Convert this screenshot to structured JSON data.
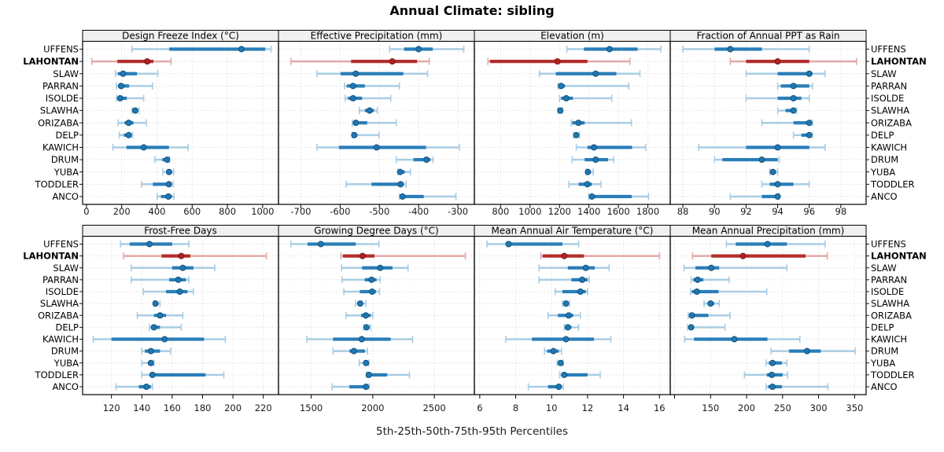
{
  "title": "Annual Climate: sibling",
  "caption": "5th-25th-50th-75th-95th Percentiles",
  "colors": {
    "normal": "#1f78b4",
    "normal_light": "#a9cde4",
    "normal_dark": "#14537d",
    "highlight": "#b22222",
    "highlight_light": "#e2a8a8",
    "highlight_dark": "#7c1616",
    "strip_bg": "#f0f0f0",
    "panel_border": "#000000",
    "grid": "#d2d2d2",
    "tick": "#000000",
    "tick_label": "#1a1a1a",
    "station_label": "#000000"
  },
  "chart_data": {
    "type": "dotplot-percentiles",
    "percentiles": [
      "5th",
      "25th",
      "50th",
      "75th",
      "95th"
    ],
    "stations": [
      "UFFENS",
      "LAHONTAN",
      "SLAW",
      "PARRAN",
      "ISOLDE",
      "SLAWHA",
      "ORIZABA",
      "DELP",
      "KAWICH",
      "DRUM",
      "YUBA",
      "TODDLER",
      "ANCO"
    ],
    "highlight_station": "LAHONTAN",
    "grid_style": "dotted",
    "panels": [
      {
        "title": "Design Freeze Index (°C)",
        "xlim": [
          -22,
          1090
        ],
        "ticks": [
          0,
          200,
          400,
          600,
          800,
          1000
        ],
        "values": [
          [
            258,
            470,
            880,
            1015,
            1048
          ],
          [
            30,
            175,
            345,
            380,
            480
          ],
          [
            164,
            178,
            208,
            287,
            405
          ],
          [
            170,
            180,
            197,
            242,
            375
          ],
          [
            170,
            180,
            191,
            229,
            325
          ],
          [
            258,
            268,
            277,
            287,
            298
          ],
          [
            179,
            216,
            240,
            267,
            340
          ],
          [
            186,
            212,
            240,
            256,
            262
          ],
          [
            150,
            227,
            325,
            468,
            577
          ],
          [
            388,
            430,
            458,
            466,
            471
          ],
          [
            433,
            452,
            469,
            482,
            495
          ],
          [
            313,
            377,
            468,
            483,
            492
          ],
          [
            402,
            423,
            465,
            485,
            496
          ]
        ]
      },
      {
        "title": "Effective Precipitation (mm)",
        "xlim": [
          -757,
          -258
        ],
        "ticks": [
          -700,
          -600,
          -500,
          -400,
          -300
        ],
        "values": [
          [
            -474,
            -437,
            -400,
            -364,
            -285
          ],
          [
            -725,
            -572,
            -467,
            -404,
            -373
          ],
          [
            -659,
            -599,
            -560,
            -439,
            -377
          ],
          [
            -589,
            -583,
            -567,
            -537,
            -449
          ],
          [
            -587,
            -580,
            -567,
            -544,
            -471
          ],
          [
            -551,
            -537,
            -525,
            -514,
            -505
          ],
          [
            -569,
            -566,
            -560,
            -531,
            -457
          ],
          [
            -569,
            -567,
            -564,
            -556,
            -501
          ],
          [
            -659,
            -603,
            -507,
            -381,
            -296
          ],
          [
            -457,
            -413,
            -380,
            -370,
            -363
          ],
          [
            -453,
            -450,
            -447,
            -435,
            -421
          ],
          [
            -585,
            -520,
            -446,
            -438,
            -432
          ],
          [
            -449,
            -445,
            -441,
            -387,
            -305
          ]
        ]
      },
      {
        "title": "Elevation (m)",
        "xlim": [
          622,
          1952
        ],
        "ticks": [
          800,
          1000,
          1200,
          1400,
          1600,
          1800
        ],
        "values": [
          [
            1250,
            1365,
            1540,
            1730,
            1888
          ],
          [
            714,
            728,
            1186,
            1390,
            1678
          ],
          [
            1064,
            1175,
            1446,
            1586,
            1746
          ],
          [
            1190,
            1196,
            1211,
            1237,
            1670
          ],
          [
            1200,
            1211,
            1246,
            1291,
            1555
          ],
          [
            1190,
            1198,
            1205,
            1212,
            1220
          ],
          [
            1280,
            1286,
            1329,
            1371,
            1688
          ],
          [
            1296,
            1305,
            1314,
            1324,
            1336
          ],
          [
            1314,
            1390,
            1434,
            1693,
            1786
          ],
          [
            1286,
            1371,
            1446,
            1530,
            1568
          ],
          [
            1380,
            1387,
            1393,
            1405,
            1429
          ],
          [
            1264,
            1330,
            1389,
            1420,
            1482
          ],
          [
            1398,
            1412,
            1420,
            1690,
            1805
          ]
        ]
      },
      {
        "title": "Fraction of Annual PPT as Rain",
        "xlim": [
          87.2,
          99.6
        ],
        "ticks": [
          88,
          90,
          92,
          94,
          96,
          98
        ],
        "values": [
          [
            88,
            90,
            91,
            93,
            96
          ],
          [
            91,
            92,
            94,
            96,
            99
          ],
          [
            92,
            94,
            96,
            96.2,
            97
          ],
          [
            94,
            94.2,
            95,
            96,
            96.2
          ],
          [
            92,
            94,
            95,
            95.5,
            96
          ],
          [
            94,
            94.5,
            95,
            95.1,
            95.2
          ],
          [
            93,
            95,
            96,
            96.1,
            96.2
          ],
          [
            95,
            95.5,
            96,
            96.1,
            96.2
          ],
          [
            89,
            92,
            94,
            96,
            97
          ],
          [
            90,
            90.5,
            93,
            94,
            94.1
          ],
          [
            93.5,
            93.6,
            93.7,
            93.9,
            94
          ],
          [
            93,
            93.5,
            94,
            95,
            96
          ],
          [
            91,
            93,
            94,
            94.05,
            94.1
          ]
        ]
      },
      {
        "title": "Frost-Free Days",
        "xlim": [
          101,
          230
        ],
        "ticks": [
          120,
          140,
          160,
          180,
          200,
          220
        ],
        "values": [
          [
            126,
            132,
            145,
            160,
            171
          ],
          [
            128,
            153,
            166,
            172,
            222
          ],
          [
            133,
            160,
            167,
            174,
            188
          ],
          [
            133,
            158,
            164,
            169,
            171
          ],
          [
            141,
            156,
            165,
            170,
            174
          ],
          [
            148,
            148.5,
            149,
            150,
            152
          ],
          [
            137,
            148,
            152,
            156,
            167
          ],
          [
            145,
            146,
            148,
            152,
            166
          ],
          [
            108,
            120,
            155,
            181,
            195
          ],
          [
            140,
            142,
            146,
            152,
            159
          ],
          [
            140,
            144,
            146,
            147,
            148
          ],
          [
            140,
            145,
            147,
            182,
            194
          ],
          [
            123,
            138,
            143,
            146,
            147
          ]
        ]
      },
      {
        "title": "Growing Degree Days (°C)",
        "xlim": [
          1234,
          2825
        ],
        "ticks": [
          1500,
          2000,
          2500
        ],
        "values": [
          [
            1335,
            1470,
            1578,
            1862,
            2050
          ],
          [
            1742,
            1757,
            1917,
            2014,
            2752
          ],
          [
            1746,
            1913,
            2060,
            2160,
            2286
          ],
          [
            1750,
            1935,
            1990,
            2030,
            2060
          ],
          [
            1765,
            1895,
            1995,
            2025,
            2055
          ],
          [
            1860,
            1885,
            1898,
            1915,
            1945
          ],
          [
            1783,
            1905,
            1943,
            1983,
            2000
          ],
          [
            1925,
            1938,
            1949,
            1962,
            1983
          ],
          [
            1465,
            1677,
            1910,
            2145,
            2323
          ],
          [
            1677,
            1810,
            1847,
            1936,
            1957
          ],
          [
            1889,
            1925,
            1945,
            1955,
            1968
          ],
          [
            1947,
            1955,
            1968,
            2117,
            2298
          ],
          [
            1670,
            1810,
            1945,
            1960,
            1972
          ]
        ]
      },
      {
        "title": "Mean Annual Air Temperature (°C)",
        "xlim": [
          5.7,
          16.6
        ],
        "ticks": [
          6,
          8,
          10,
          12,
          14,
          16
        ],
        "values": [
          [
            6.4,
            7.5,
            7.6,
            10.6,
            11.5
          ],
          [
            9.4,
            9.5,
            10.7,
            11.8,
            16
          ],
          [
            9.3,
            10.9,
            11.9,
            12.4,
            13.2
          ],
          [
            9.3,
            11.1,
            11.7,
            12,
            12.1
          ],
          [
            10.2,
            10.6,
            11.6,
            11.9,
            12
          ],
          [
            10.6,
            10.75,
            10.8,
            10.9,
            11
          ],
          [
            9.8,
            10.35,
            10.95,
            11.2,
            11.6
          ],
          [
            10.7,
            10.8,
            10.9,
            11.1,
            11.5
          ],
          [
            7.45,
            8.9,
            10.8,
            12.35,
            13.3
          ],
          [
            9.6,
            9.75,
            10.1,
            10.4,
            10.55
          ],
          [
            10.3,
            10.4,
            10.5,
            10.6,
            10.65
          ],
          [
            10.45,
            10.6,
            10.7,
            12,
            12.7
          ],
          [
            8.7,
            9.8,
            10.4,
            10.55,
            10.65
          ]
        ]
      },
      {
        "title": "Mean Annual Precipitation (mm)",
        "xlim": [
          94,
          366
        ],
        "ticks": [
          100,
          150,
          200,
          250,
          300,
          350
        ],
        "tick_labels": [
          "",
          "150",
          "200",
          "250",
          "300",
          "350"
        ],
        "values": [
          [
            172,
            185,
            229,
            256,
            309
          ],
          [
            125,
            151,
            195,
            282,
            312
          ],
          [
            113,
            129,
            151,
            162,
            256
          ],
          [
            123,
            126,
            132,
            140,
            176
          ],
          [
            122,
            124,
            131,
            161,
            228
          ],
          [
            141,
            146,
            150,
            155,
            162
          ],
          [
            119,
            121,
            124,
            147,
            177
          ],
          [
            118,
            120,
            123,
            126,
            170
          ],
          [
            114,
            127,
            183,
            229,
            274
          ],
          [
            234,
            259,
            284,
            303,
            351
          ],
          [
            227,
            231,
            236,
            249,
            256
          ],
          [
            197,
            228,
            235,
            250,
            257
          ],
          [
            227,
            230,
            236,
            249,
            313
          ]
        ]
      }
    ]
  }
}
